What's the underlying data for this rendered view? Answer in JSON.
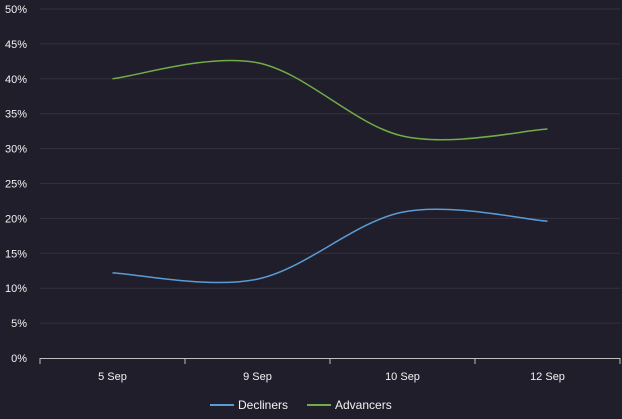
{
  "chart_data": {
    "type": "line",
    "categories": [
      "5 Sep",
      "9 Sep",
      "10 Sep",
      "12 Sep"
    ],
    "series": [
      {
        "name": "Decliners",
        "values": [
          12.2,
          11.3,
          20.9,
          19.6
        ],
        "color": "#5b9bd5"
      },
      {
        "name": "Advancers",
        "values": [
          40.0,
          42.3,
          31.8,
          32.8
        ],
        "color": "#70ad47"
      }
    ],
    "y_ticks": [
      "0%",
      "5%",
      "10%",
      "15%",
      "20%",
      "25%",
      "30%",
      "35%",
      "40%",
      "45%",
      "50%"
    ],
    "ylim": [
      0,
      50
    ],
    "grid": true,
    "legend_position": "bottom",
    "smooth": true
  },
  "colors": {
    "background": "#211e2b",
    "gridline": "#34313f",
    "axis": "#bfbfbf",
    "text": "#f2f2f2"
  }
}
